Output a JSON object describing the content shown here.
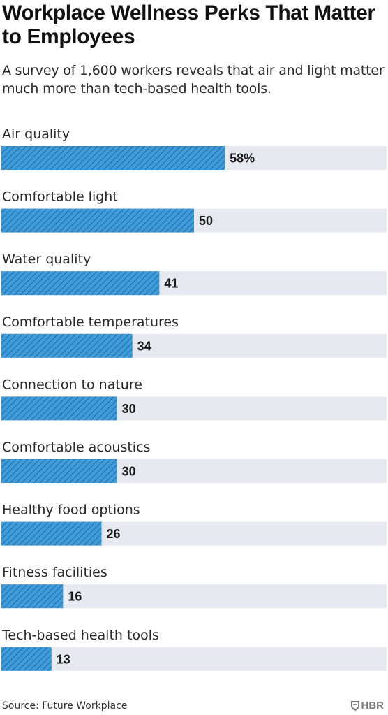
{
  "header": {
    "title": "Workplace Wellness Perks That Matter to Employees",
    "subtitle": "A survey of 1,600 workers reveals that air and light matter much more than tech-based health tools."
  },
  "footer": {
    "source": "Source: Future Workplace",
    "logo_text": "HBR"
  },
  "colors": {
    "bar_fill": "#3f9bd9",
    "bar_hatch": "#1f6fa8",
    "track": "#e6eaf0"
  },
  "chart_data": {
    "type": "bar",
    "orientation": "horizontal",
    "categories": [
      "Air quality",
      "Comfortable light",
      "Water quality",
      "Comfortable temperatures",
      "Connection to nature",
      "Comfortable acoustics",
      "Healthy food options",
      "Fitness facilities",
      "Tech-based health tools"
    ],
    "values": [
      58,
      50,
      41,
      34,
      30,
      30,
      26,
      16,
      13
    ],
    "value_labels": [
      "58%",
      "50",
      "41",
      "34",
      "30",
      "30",
      "26",
      "16",
      "13"
    ],
    "xlim": [
      0,
      100
    ],
    "unit": "%",
    "grid": false,
    "legend": "none"
  }
}
